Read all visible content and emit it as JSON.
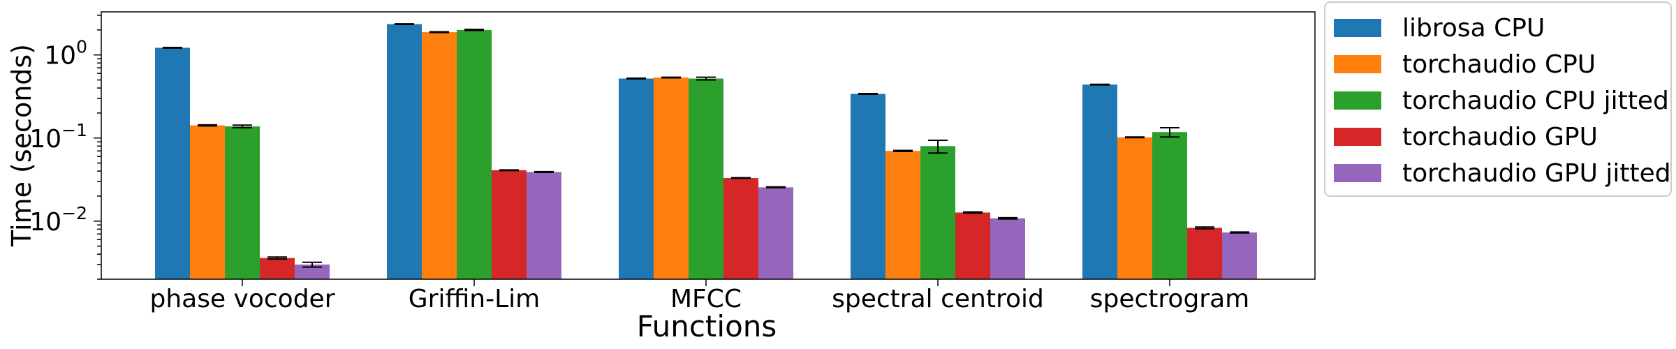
{
  "chart_data": {
    "type": "bar",
    "title": "",
    "xlabel": "Functions",
    "ylabel": "Time (seconds)",
    "yscale": "log",
    "ylim": [
      0.002,
      3.3
    ],
    "y_ticks": [
      {
        "value": 1,
        "base": "10",
        "exp": "0"
      },
      {
        "value": 0.1,
        "base": "10",
        "exp": "−1"
      },
      {
        "value": 0.01,
        "base": "10",
        "exp": "−2"
      }
    ],
    "categories": [
      "phase vocoder",
      "Griffin-Lim",
      "MFCC",
      "spectral centroid",
      "spectrogram"
    ],
    "series": [
      {
        "name": "librosa CPU",
        "color": "#1f77b4",
        "values": [
          1.22,
          2.35,
          0.52,
          0.34,
          0.44
        ],
        "errors": [
          0.01,
          0.02,
          0.005,
          0.003,
          0.004
        ]
      },
      {
        "name": "torchaudio CPU",
        "color": "#ff7f0e",
        "values": [
          0.142,
          1.88,
          0.535,
          0.07,
          0.102
        ],
        "errors": [
          0.002,
          0.02,
          0.005,
          0.001,
          0.001
        ]
      },
      {
        "name": "torchaudio CPU jitted",
        "color": "#2ca02c",
        "values": [
          0.138,
          2.0,
          0.52,
          0.08,
          0.118
        ],
        "errors": [
          0.005,
          0.03,
          0.02,
          0.014,
          0.015
        ]
      },
      {
        "name": "torchaudio GPU",
        "color": "#d62728",
        "values": [
          0.0036,
          0.041,
          0.033,
          0.0127,
          0.0083
        ],
        "errors": [
          0.0001,
          0.0004,
          0.0003,
          0.0002,
          0.0002
        ]
      },
      {
        "name": "torchaudio GPU jitted",
        "color": "#9467bd",
        "values": [
          0.003,
          0.039,
          0.0255,
          0.0108,
          0.0073
        ],
        "errors": [
          0.0002,
          0.0004,
          0.0003,
          0.0002,
          0.0001
        ]
      }
    ],
    "legend_position": "outside-right-top",
    "grid": false
  }
}
